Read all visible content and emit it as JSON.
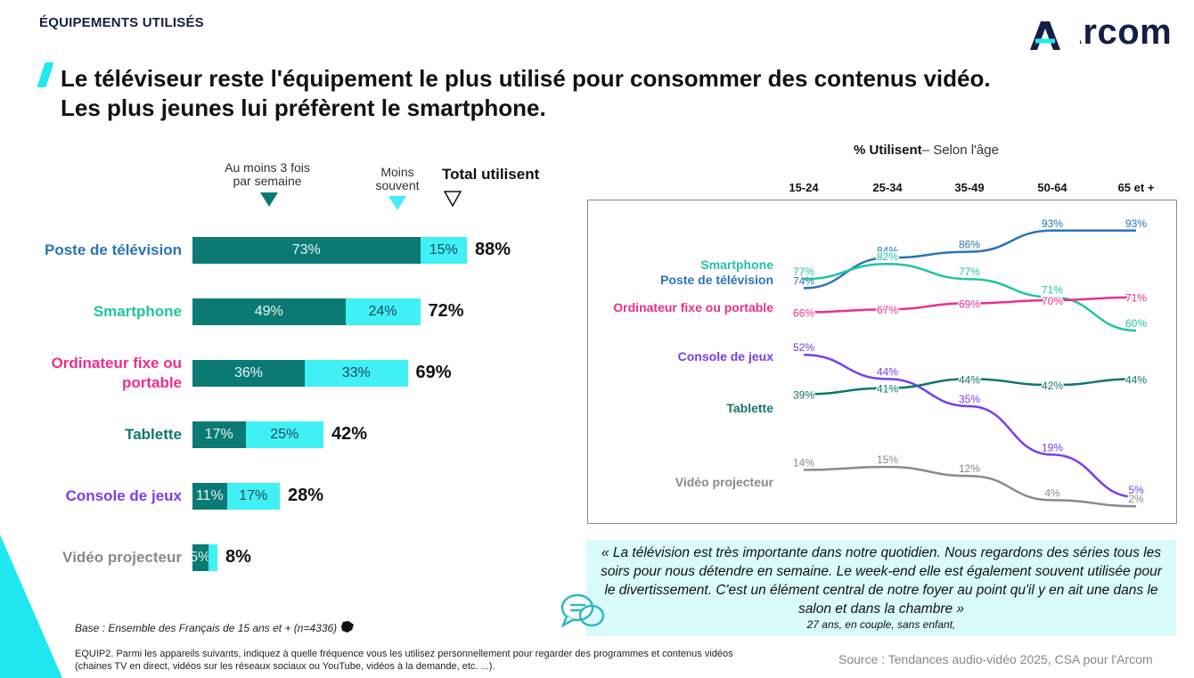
{
  "header": {
    "section": "ÉQUIPEMENTS UTILISÉS",
    "logo_text": "Arcom",
    "title_line1": "Le téléviseur reste l'équipement le plus utilisé pour consommer des contenus vidéo.",
    "title_line2": "Les plus jeunes lui préfèrent le smartphone."
  },
  "colors": {
    "frequent": "#0b7a74",
    "less_often": "#3ff0f5",
    "tv": "#2b73b9",
    "smartphone": "#1fc4a3",
    "ordinateur": "#ef2d8c",
    "console": "#7a3cf0",
    "tablette": "#10756e",
    "projecteur": "#8a8a8a",
    "corner": "#20e8f0"
  },
  "chart_data": [
    {
      "type": "bar",
      "stacked": true,
      "orientation": "horizontal",
      "legend": {
        "frequent": "Au moins 3 fois par semaine",
        "frequent_line1": "Au moins 3 fois",
        "frequent_line2": "par semaine",
        "less_line1": "Moins",
        "less_line2": "souvent",
        "total": "Total utilisent"
      },
      "categories": [
        "Poste de télévision",
        "Smartphone",
        "Ordinateur fixe ou portable",
        "Tablette",
        "Console de jeux",
        "Vidéo projecteur"
      ],
      "category_lines": [
        [
          "Poste de télévision"
        ],
        [
          "Smartphone"
        ],
        [
          "Ordinateur fixe ou",
          "portable"
        ],
        [
          "Tablette"
        ],
        [
          "Console de jeux"
        ],
        [
          "Vidéo projecteur"
        ]
      ],
      "series": [
        {
          "name": "Au moins 3 fois par semaine",
          "values": [
            73,
            49,
            36,
            17,
            11,
            5
          ],
          "labels": [
            "73%",
            "49%",
            "36%",
            "17%",
            "11%",
            "5%"
          ]
        },
        {
          "name": "Moins souvent",
          "values": [
            15,
            24,
            33,
            25,
            17,
            3
          ],
          "labels": [
            "15%",
            "24%",
            "33%",
            "25%",
            "17%",
            ""
          ]
        }
      ],
      "totals": [
        "88%",
        "72%",
        "69%",
        "42%",
        "28%",
        "8%"
      ]
    },
    {
      "type": "line",
      "title_bold": "% Utilisent",
      "title_rest": "– Selon l'âge",
      "x": [
        "15-24",
        "25-34",
        "35-49",
        "50-64",
        "65  et +"
      ],
      "series": [
        {
          "name": "Poste de télévision",
          "values": [
            74,
            84,
            86,
            93,
            93
          ],
          "labels": [
            "74%",
            "84%",
            "86%",
            "93%",
            "93%"
          ]
        },
        {
          "name": "Smartphone",
          "values": [
            77,
            82,
            77,
            71,
            60
          ],
          "labels": [
            "77%",
            "82%",
            "77%",
            "71%",
            "60%"
          ]
        },
        {
          "name": "Ordinateur fixe ou portable",
          "values": [
            66,
            67,
            69,
            70,
            71
          ],
          "labels": [
            "66%",
            "67%",
            "69%",
            "70%",
            "71%"
          ]
        },
        {
          "name": "Console de jeux",
          "values": [
            52,
            44,
            35,
            19,
            5
          ],
          "labels": [
            "52%",
            "44%",
            "35%",
            "19%",
            "5%"
          ]
        },
        {
          "name": "Tablette",
          "values": [
            39,
            41,
            44,
            42,
            44
          ],
          "labels": [
            "39%",
            "41%",
            "44%",
            "42%",
            "44%"
          ]
        },
        {
          "name": "Vidéo projecteur",
          "values": [
            14,
            15,
            12,
            4,
            2
          ],
          "labels": [
            "14%",
            "15%",
            "12%",
            "4%",
            "2%"
          ]
        }
      ]
    }
  ],
  "quote": {
    "text": "« La télévision est très importante dans notre quotidien. Nous regardons des séries tous les soirs pour nous détendre en semaine. Le week-end elle est également souvent utilisée pour le divertissement. C'est un élément central de notre foyer au point qu'il y en ait une dans le salon et dans la chambre »",
    "author": "27 ans, en couple, sans enfant,"
  },
  "footer": {
    "base": "Base : Ensemble des Français de 15 ans et + (n=4336)",
    "equip": "EQUIP2. Parmi les appareils suivants, indiquez à quelle fréquence vous les utilisez personnellement pour regarder des programmes et contenus vidéos (chaines TV en direct, vidéos sur les réseaux sociaux ou YouTube, vidéos à la demande, etc. ...).",
    "source": "Source :  Tendances audio-vidéo 2025, CSA pour l'Arcom"
  }
}
